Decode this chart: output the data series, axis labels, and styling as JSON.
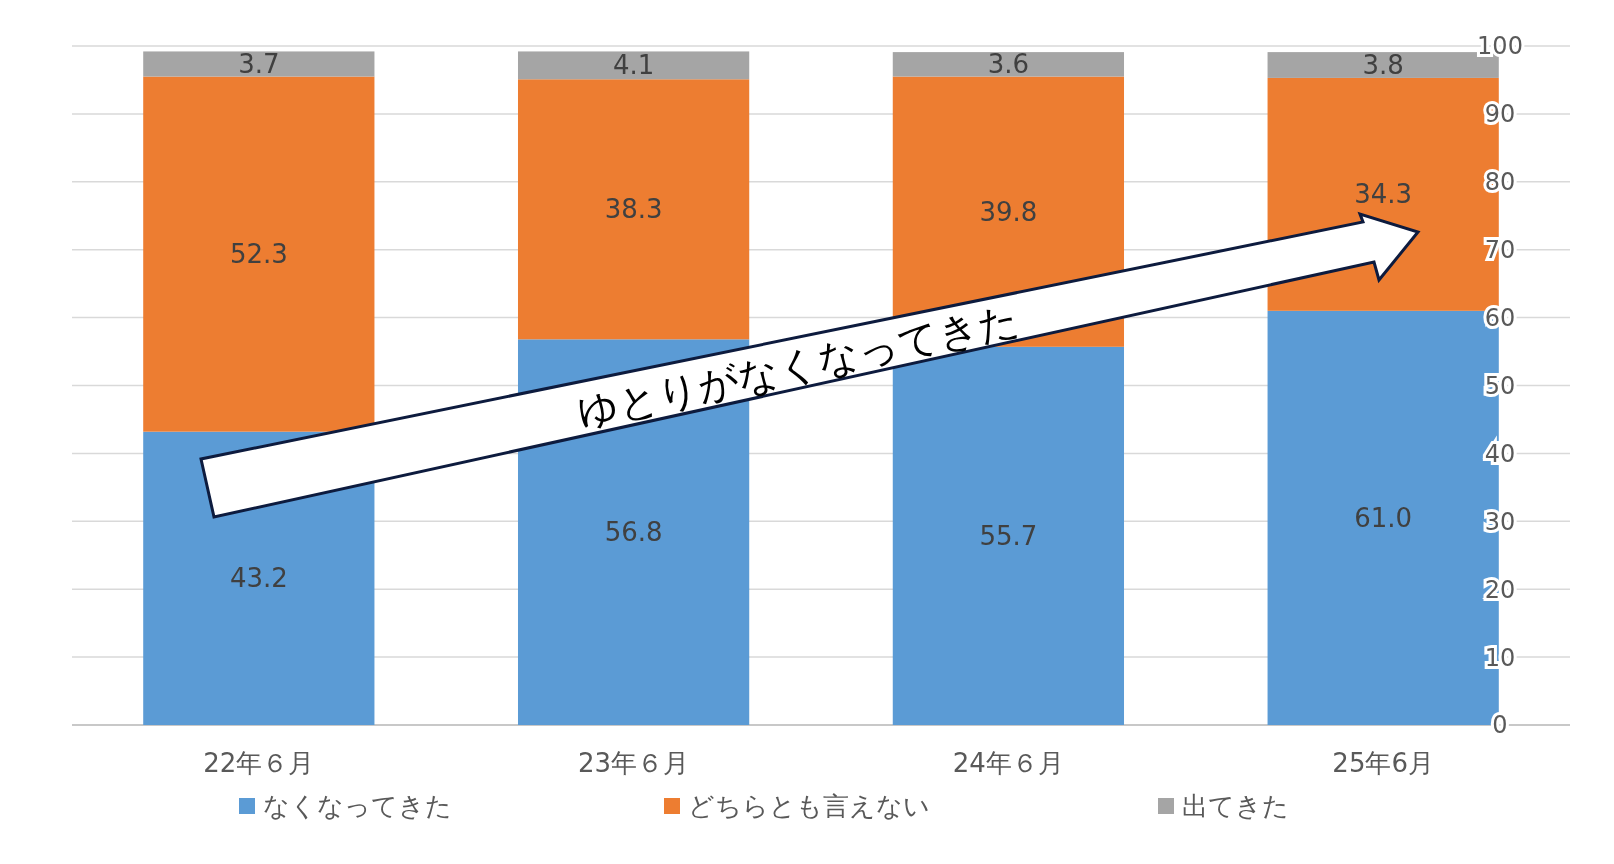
{
  "chart_data": {
    "type": "bar",
    "stacked": true,
    "categories": [
      "22年６月",
      "23年６月",
      "24年６月",
      "25年6月"
    ],
    "series": [
      {
        "name": "なくなってきた",
        "color": "#5b9bd5",
        "values": [
          43.2,
          56.8,
          55.7,
          61.0
        ],
        "value_labels": [
          "43.2",
          "56.8",
          "55.7",
          "61.0"
        ]
      },
      {
        "name": "どちらとも言えない",
        "color": "#ed7d31",
        "values": [
          52.3,
          38.3,
          39.8,
          34.3
        ],
        "value_labels": [
          "52.3",
          "38.3",
          "39.8",
          "34.3"
        ]
      },
      {
        "name": "出てきた",
        "color": "#a5a5a5",
        "values": [
          3.7,
          4.1,
          3.6,
          3.8
        ],
        "value_labels": [
          "3.7",
          "4.1",
          "3.6",
          "3.8"
        ]
      }
    ],
    "ylim": [
      0,
      100
    ],
    "yticks": [
      0,
      10,
      20,
      30,
      40,
      50,
      60,
      70,
      80,
      90,
      100
    ],
    "grid": "y",
    "legend": "bottom",
    "annotations": [
      "ゆとりがなくなってきた"
    ]
  }
}
